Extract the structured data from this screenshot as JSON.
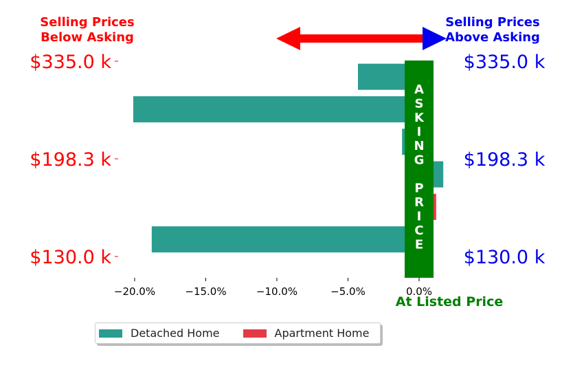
{
  "chart_data": {
    "type": "bar",
    "orientation": "horizontal",
    "xlim": [
      -22,
      1.5
    ],
    "x_ticks": [
      -20,
      -15,
      -10,
      -5,
      0
    ],
    "x_tick_labels": [
      "−20.0%",
      "−15.0%",
      "−10.0%",
      "−5.0%",
      "0.0%"
    ],
    "y_tick_labels": [
      "$335.0 k",
      "$198.3 k",
      "$130.0 k"
    ],
    "series": [
      {
        "name": "Detached Home",
        "color": "#2a9d8f",
        "values": [
          -4.3,
          -20.1,
          -1.2,
          1.7,
          null,
          -18.8
        ]
      },
      {
        "name": "Apartment Home",
        "color": "#e63946",
        "values": [
          null,
          null,
          null,
          null,
          1.2,
          null
        ]
      }
    ],
    "legend_position": "bottom-left",
    "grid": false
  },
  "annotations": {
    "left_header": [
      "Selling Prices",
      "Below Asking"
    ],
    "right_header": [
      "Selling Prices",
      "Above Asking"
    ],
    "asking_price_letters": [
      "A",
      "S",
      "K",
      "I",
      "N",
      "G",
      "",
      "P",
      "R",
      "I",
      "C",
      "E"
    ],
    "at_listed_price": "At Listed Price"
  },
  "colors": {
    "below": "#ff0000",
    "above": "#0000ee",
    "asking": "#008000",
    "arrow": "#ff0000",
    "arrow_head_right": "#0000ee"
  }
}
